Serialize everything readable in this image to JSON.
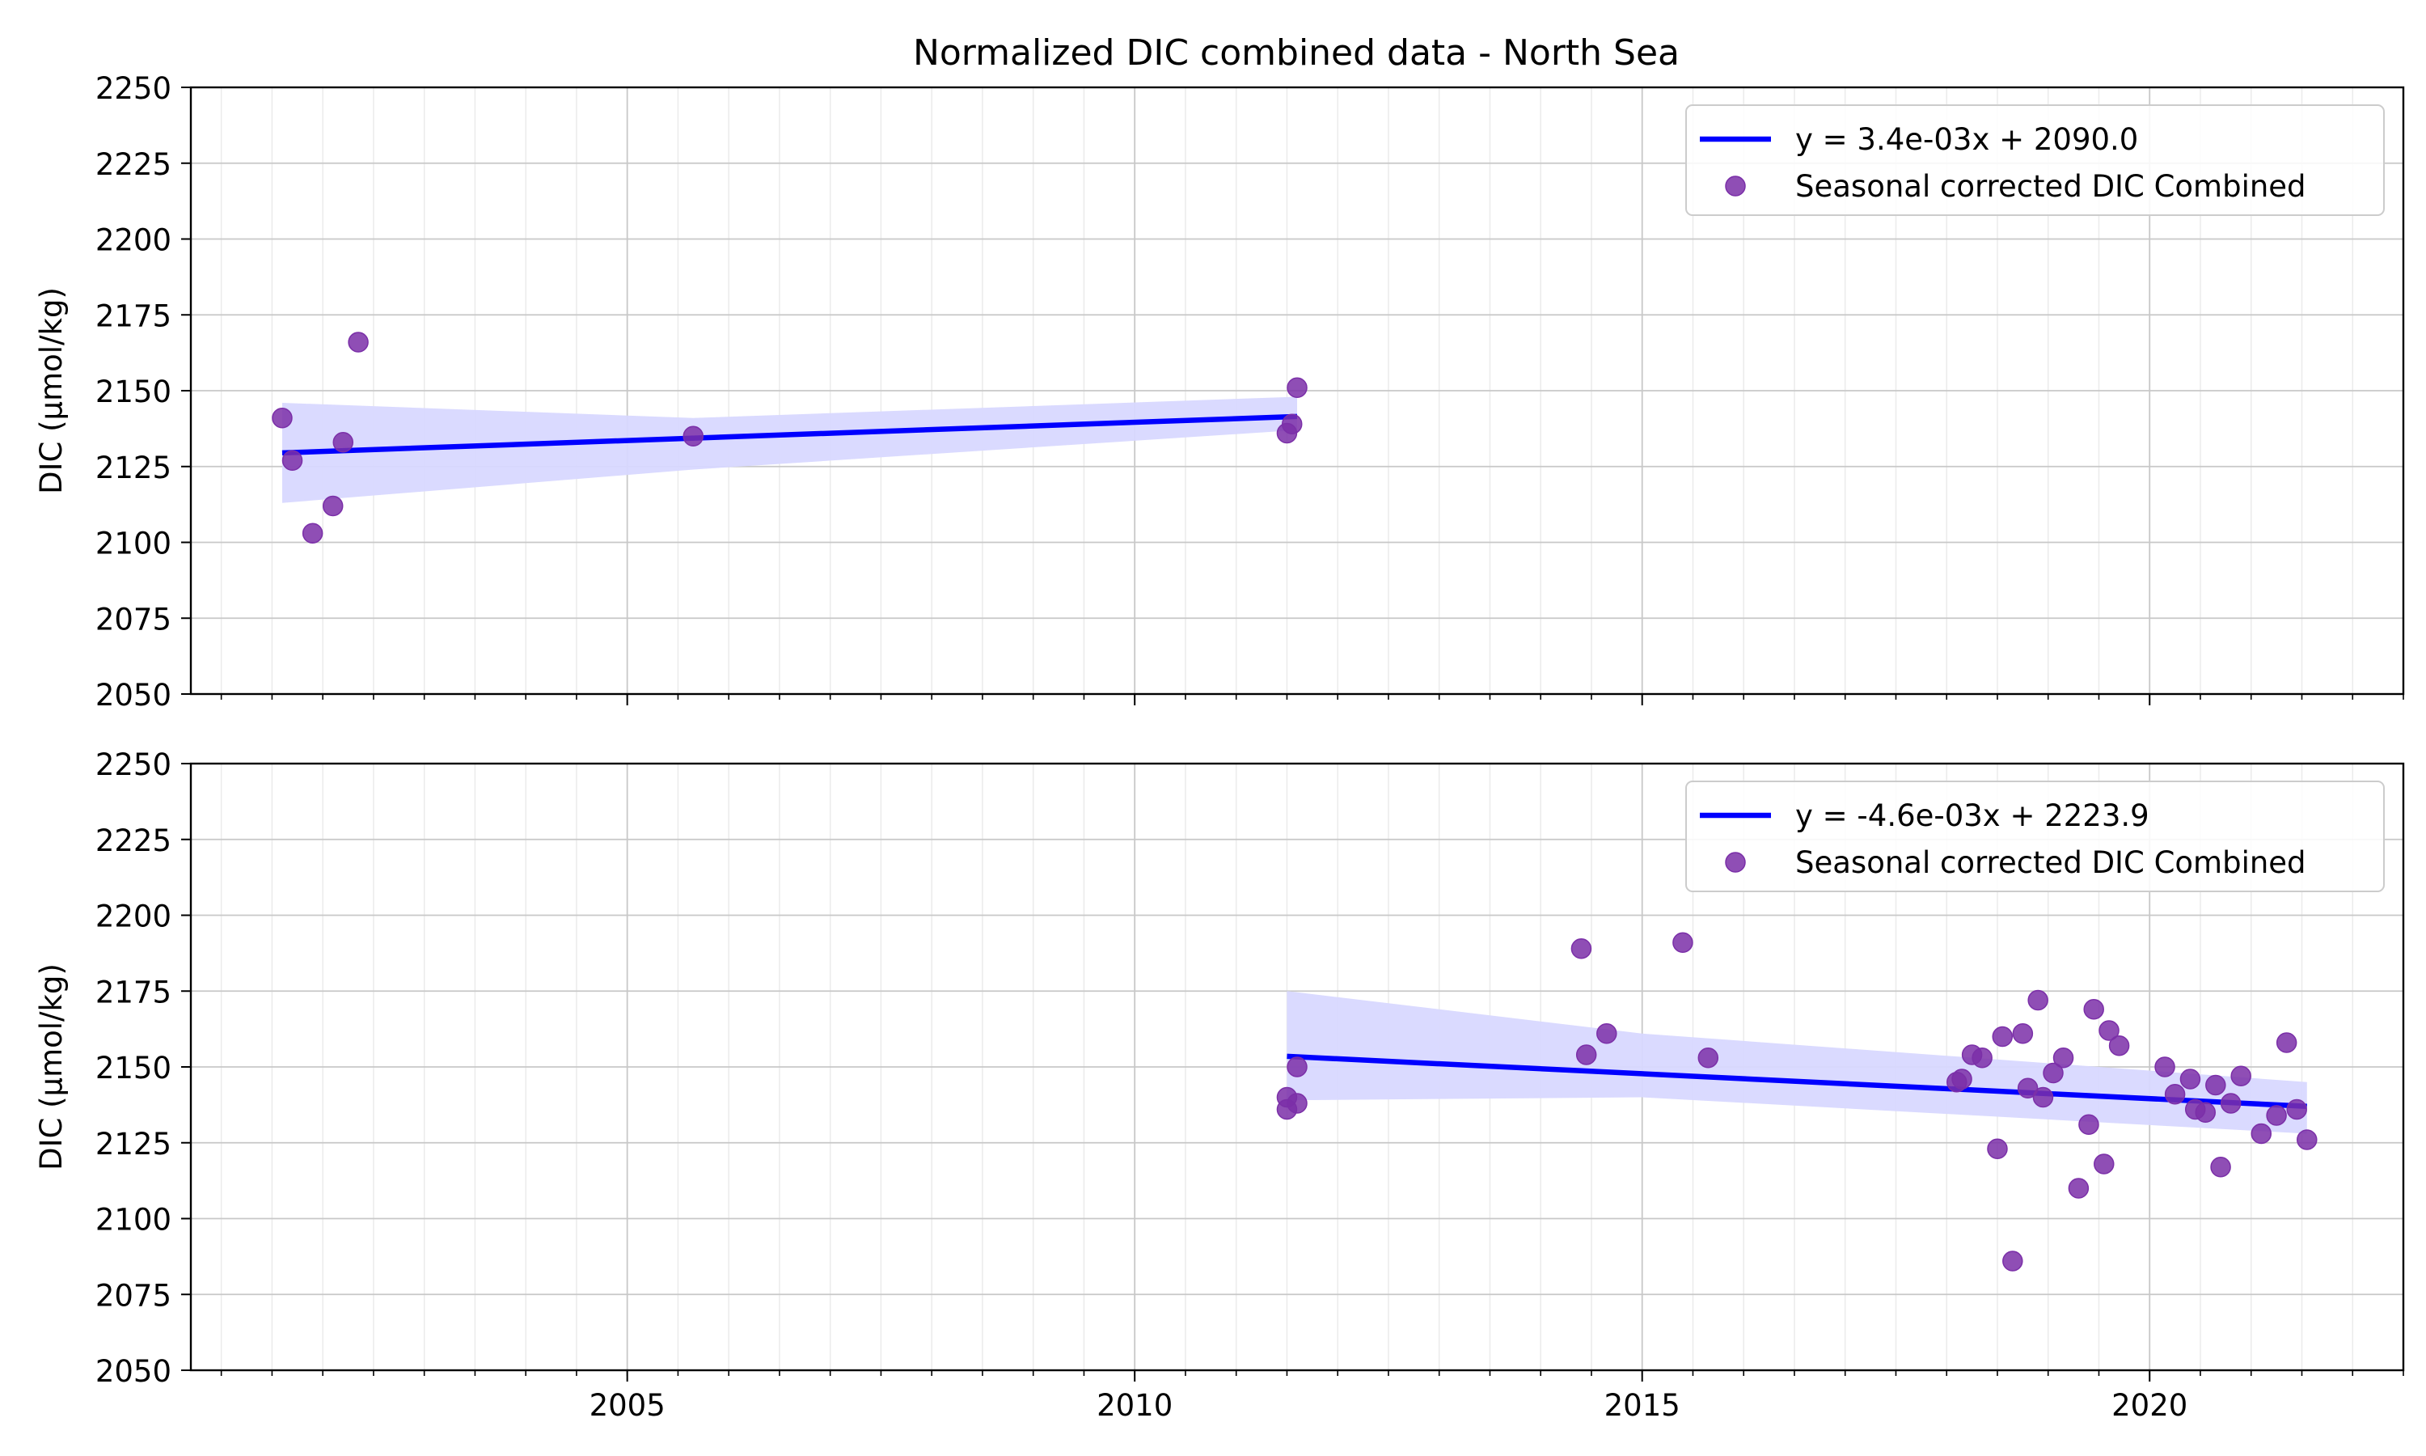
{
  "chart_data": [
    {
      "type": "scatter",
      "title": "Normalized DIC combined data - North Sea",
      "xlabel": "",
      "ylabel": "DIC (µmol/kg)",
      "xlim": [
        2000.7,
        2022.5
      ],
      "ylim": [
        2050,
        2250
      ],
      "x_ticks": [
        "2005",
        "2010",
        "2015",
        "2020"
      ],
      "y_ticks": [
        "2050",
        "2075",
        "2100",
        "2125",
        "2150",
        "2175",
        "2200",
        "2225",
        "2250"
      ],
      "grid": true,
      "legend_position": "top-right",
      "series": [
        {
          "name": "Seasonal corrected DIC Combined",
          "kind": "scatter",
          "color": "#7b2fa8",
          "x": [
            2001.6,
            2001.7,
            2001.9,
            2002.1,
            2002.2,
            2002.35,
            2005.65,
            2011.5,
            2011.55,
            2011.6
          ],
          "y": [
            2141,
            2127,
            2103,
            2112,
            2133,
            2166,
            2135,
            2136,
            2139,
            2151
          ]
        },
        {
          "name": "y = 3.4e-03x + 2090.0",
          "kind": "fit",
          "color": "#0000ff",
          "x": [
            2001.6,
            2011.6
          ],
          "y": [
            2129.5,
            2141.5
          ],
          "ci_lower": [
            2113,
            2124,
            2137
          ],
          "ci_upper": [
            2146,
            2141,
            2148
          ],
          "ci_x": [
            2001.6,
            2005.65,
            2011.6
          ],
          "ci_color": "#d8d8ff"
        }
      ]
    },
    {
      "type": "scatter",
      "title": "",
      "xlabel": "",
      "ylabel": "DIC (µmol/kg)",
      "xlim": [
        2000.7,
        2022.5
      ],
      "ylim": [
        2050,
        2250
      ],
      "x_ticks": [
        "2005",
        "2010",
        "2015",
        "2020"
      ],
      "y_ticks": [
        "2050",
        "2075",
        "2100",
        "2125",
        "2150",
        "2175",
        "2200",
        "2225",
        "2250"
      ],
      "grid": true,
      "legend_position": "top-right",
      "series": [
        {
          "name": "Seasonal corrected DIC Combined",
          "kind": "scatter",
          "color": "#7b2fa8",
          "x": [
            2011.5,
            2011.5,
            2011.6,
            2011.6,
            2014.4,
            2014.45,
            2014.65,
            2015.4,
            2015.65,
            2018.1,
            2018.15,
            2018.25,
            2018.35,
            2018.5,
            2018.55,
            2018.65,
            2018.75,
            2018.8,
            2018.9,
            2018.95,
            2019.05,
            2019.15,
            2019.3,
            2019.4,
            2019.45,
            2019.55,
            2019.6,
            2019.7,
            2020.15,
            2020.25,
            2020.4,
            2020.45,
            2020.55,
            2020.65,
            2020.7,
            2020.8,
            2020.9,
            2021.1,
            2021.25,
            2021.35,
            2021.45,
            2021.55
          ],
          "y": [
            2136,
            2140,
            2138,
            2150,
            2189,
            2154,
            2161,
            2191,
            2153,
            2145,
            2146,
            2154,
            2153,
            2123,
            2160,
            2086,
            2161,
            2143,
            2172,
            2140,
            2148,
            2153,
            2110,
            2131,
            2169,
            2118,
            2162,
            2157,
            2150,
            2141,
            2146,
            2136,
            2135,
            2144,
            2117,
            2138,
            2147,
            2128,
            2134,
            2158,
            2136,
            2126
          ]
        },
        {
          "name": "y = -4.6e-03x + 2223.9",
          "kind": "fit",
          "color": "#0000ff",
          "x": [
            2011.5,
            2021.55
          ],
          "y": [
            2153.5,
            2137
          ],
          "ci_lower": [
            2139,
            2140,
            2128
          ],
          "ci_upper": [
            2175,
            2161,
            2145
          ],
          "ci_x": [
            2011.5,
            2015.0,
            2021.55
          ],
          "ci_color": "#d8d8ff"
        }
      ]
    }
  ]
}
